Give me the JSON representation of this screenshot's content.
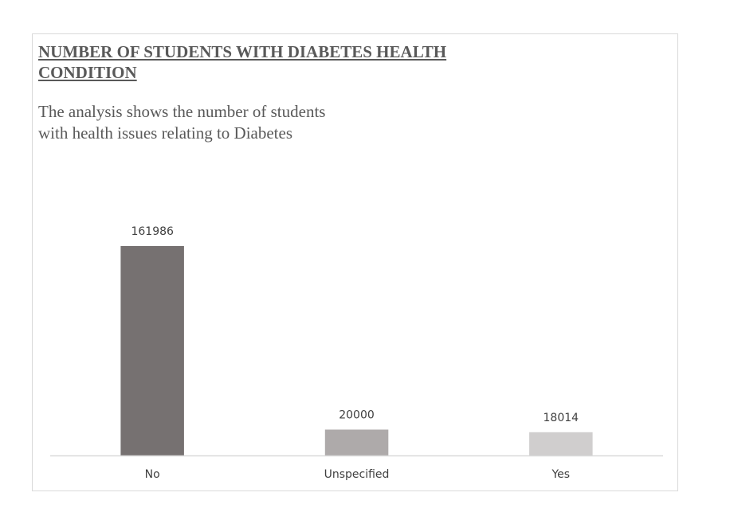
{
  "chart_data": {
    "type": "bar",
    "title": "NUMBER OF STUDENTS WITH DIABETES HEALTH\nCONDITION",
    "subtitle": "The analysis shows the number of students\nwith health issues relating to Diabetes",
    "categories": [
      "No",
      "Unspecified",
      "Yes"
    ],
    "values": [
      161986,
      20000,
      18014
    ],
    "data_labels": [
      "161986",
      "20000",
      "18014"
    ],
    "colors": [
      "#767171",
      "#aeaaaa",
      "#d0cece"
    ],
    "axis_color": "#d9d9d9",
    "ylim": [
      0,
      161986
    ],
    "grid": false,
    "legend": "none",
    "xlabel": "",
    "ylabel": ""
  }
}
